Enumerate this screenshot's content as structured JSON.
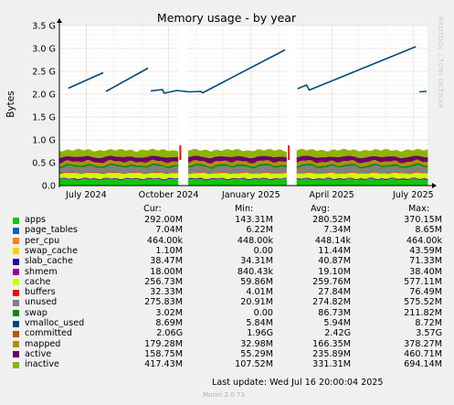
{
  "chart_data": {
    "type": "area",
    "title": "Memory usage - by year",
    "ylabel": "Bytes",
    "watermark": "RRDTOOL / TOBI OETIKER",
    "ylim": [
      0,
      3.5
    ],
    "y_ticks": [
      "0.0",
      "0.5 G",
      "1.0 G",
      "1.5 G",
      "2.0 G",
      "2.5 G",
      "3.0 G",
      "3.5 G"
    ],
    "x_ticks": [
      "July 2024",
      "October 2024",
      "January 2025",
      "April 2025",
      "July 2025"
    ],
    "gaps": [
      {
        "from": "2024-10-12",
        "to": "2024-10-22"
      },
      {
        "from": "2025-02-10",
        "to": "2025-02-20"
      }
    ],
    "committed_line": [
      {
        "x": "2024-06-11",
        "y": 2.13
      },
      {
        "x": "2024-07-20",
        "y": 2.47
      },
      {
        "x": "2024-07-23",
        "y": 2.06
      },
      {
        "x": "2024-09-08",
        "y": 2.57
      },
      {
        "x": "2024-09-11",
        "y": 2.07
      },
      {
        "x": "2024-09-24",
        "y": 2.1
      },
      {
        "x": "2024-09-26",
        "y": 2.02
      },
      {
        "x": "2024-10-10",
        "y": 2.08
      },
      {
        "x": "2024-10-24",
        "y": 2.05
      },
      {
        "x": "2024-11-06",
        "y": 2.06
      },
      {
        "x": "2024-11-08",
        "y": 2.03
      },
      {
        "x": "2025-02-08",
        "y": 2.97
      },
      {
        "x": "2025-02-22",
        "y": 2.12
      },
      {
        "x": "2025-03-04",
        "y": 2.2
      },
      {
        "x": "2025-03-07",
        "y": 2.09
      },
      {
        "x": "2025-07-04",
        "y": 3.04
      },
      {
        "x": "2025-07-08",
        "y": 2.05
      },
      {
        "x": "2025-07-16",
        "y": 2.06
      }
    ],
    "series": [
      {
        "name": "apps",
        "color": "#00cc00",
        "cur": "292.00M",
        "min": "143.31M",
        "avg": "280.52M",
        "max": "370.15M"
      },
      {
        "name": "page_tables",
        "color": "#0066b3",
        "cur": "7.04M",
        "min": "6.22M",
        "avg": "7.34M",
        "max": "8.65M"
      },
      {
        "name": "per_cpu",
        "color": "#ff8000",
        "cur": "464.00k",
        "min": "448.00k",
        "avg": "448.14k",
        "max": "464.00k"
      },
      {
        "name": "swap_cache",
        "color": "#ffcc00",
        "cur": "1.10M",
        "min": "0.00",
        "avg": "11.44M",
        "max": "43.59M"
      },
      {
        "name": "slab_cache",
        "color": "#330099",
        "cur": "38.47M",
        "min": "34.31M",
        "avg": "40.87M",
        "max": "71.33M"
      },
      {
        "name": "shmem",
        "color": "#990099",
        "cur": "18.00M",
        "min": "840.43k",
        "avg": "19.10M",
        "max": "38.40M"
      },
      {
        "name": "cache",
        "color": "#ccff00",
        "cur": "256.73M",
        "min": "59.86M",
        "avg": "259.76M",
        "max": "577.11M"
      },
      {
        "name": "buffers",
        "color": "#ff0000",
        "cur": "32.33M",
        "min": "4.01M",
        "avg": "27.84M",
        "max": "76.49M"
      },
      {
        "name": "unused",
        "color": "#808080",
        "cur": "275.83M",
        "min": "20.91M",
        "avg": "274.82M",
        "max": "575.52M"
      },
      {
        "name": "swap",
        "color": "#008f00",
        "cur": "3.02M",
        "min": "0.00",
        "avg": "86.73M",
        "max": "211.82M"
      },
      {
        "name": "vmalloc_used",
        "color": "#00487d",
        "cur": "8.69M",
        "min": "5.84M",
        "avg": "5.94M",
        "max": "8.72M"
      },
      {
        "name": "committed",
        "color": "#b35a00",
        "cur": "2.06G",
        "min": "1.96G",
        "avg": "2.42G",
        "max": "3.57G"
      },
      {
        "name": "mapped",
        "color": "#b38f00",
        "cur": "179.28M",
        "min": "32.98M",
        "avg": "166.35M",
        "max": "378.27M"
      },
      {
        "name": "active",
        "color": "#6b006b",
        "cur": "158.75M",
        "min": "55.29M",
        "avg": "235.89M",
        "max": "460.71M"
      },
      {
        "name": "inactive",
        "color": "#8fb300",
        "cur": "417.43M",
        "min": "107.52M",
        "avg": "331.31M",
        "max": "694.14M"
      }
    ]
  },
  "legend": {
    "col_cur": "Cur:",
    "col_min": "Min:",
    "col_avg": "Avg:",
    "col_max": "Max:"
  },
  "footer": {
    "last_update": "Last update: Wed Jul 16 20:00:04 2025",
    "munin_version": "Munin 2.0.73"
  }
}
